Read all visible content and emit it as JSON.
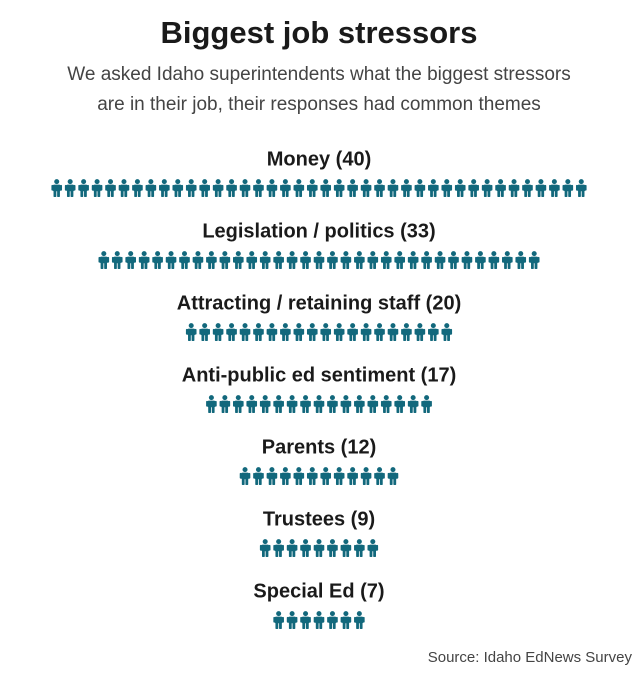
{
  "chart_data": {
    "type": "pictogram",
    "title": "Biggest job stressors",
    "subtitle": [
      "We asked Idaho superintendents what the biggest stressors",
      "are in their job, their responses had common themes"
    ],
    "categories": [
      "Money (40)",
      "Legislation / politics (33)",
      "Attracting / retaining staff (20)",
      "Anti-public ed sentiment (17)",
      "Parents (12)",
      "Trustees (9)",
      "Special Ed (7)"
    ],
    "values": [
      40,
      33,
      20,
      17,
      12,
      9,
      7
    ],
    "color": "#12687c",
    "source": "Source: Idaho EdNews Survey"
  }
}
